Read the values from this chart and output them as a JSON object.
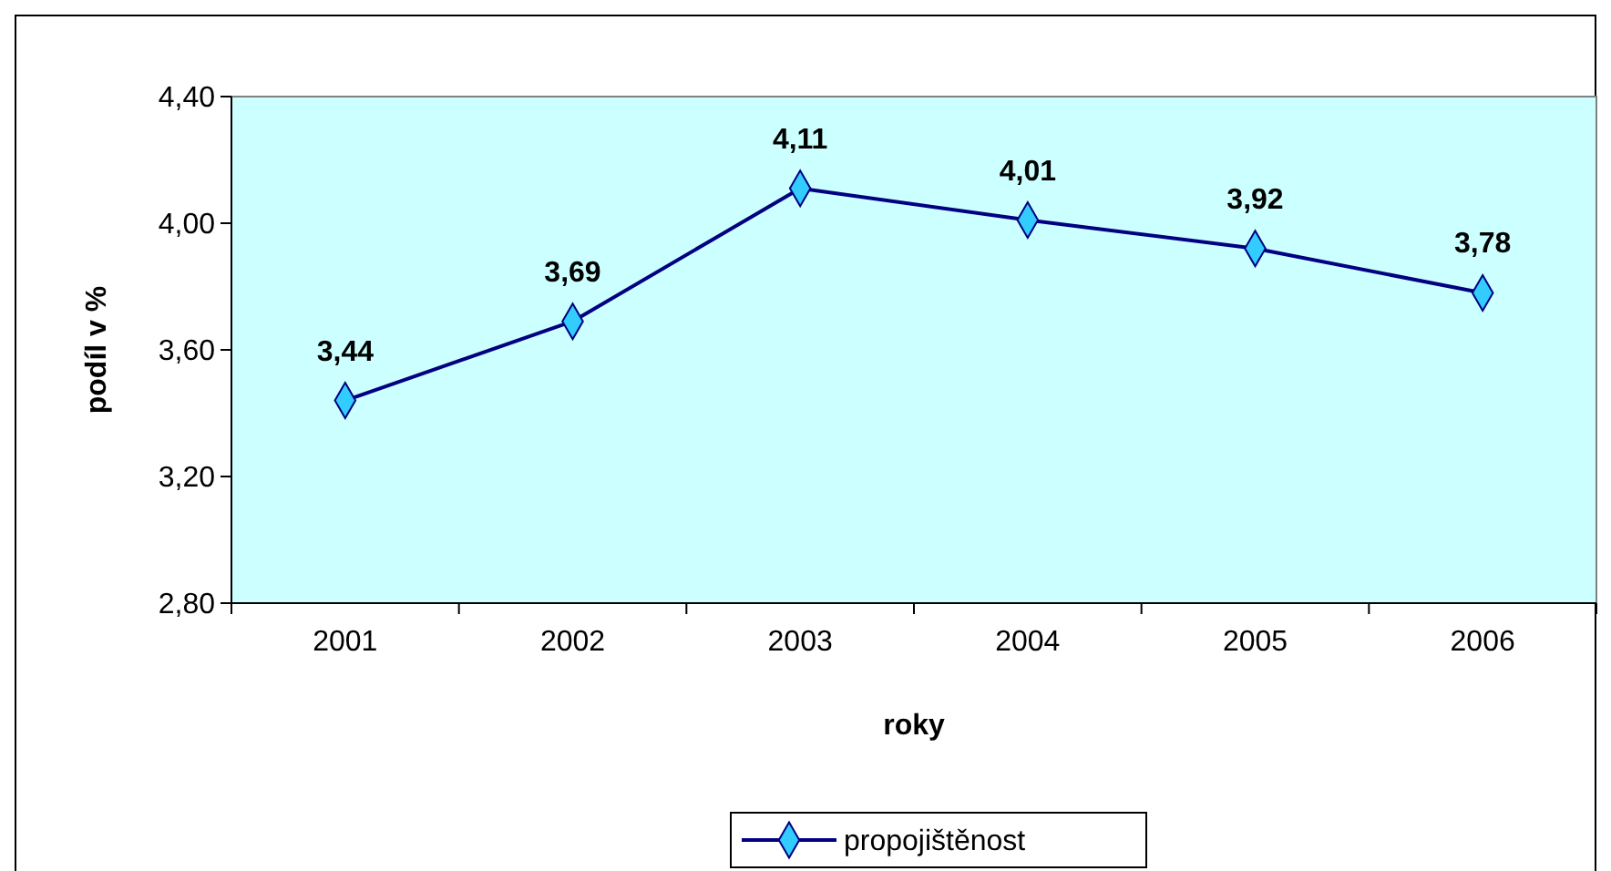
{
  "chart_data": {
    "type": "line",
    "xlabel": "roky",
    "ylabel": "podíl v %",
    "categories": [
      "2001",
      "2002",
      "2003",
      "2004",
      "2005",
      "2006"
    ],
    "series": [
      {
        "name": "propojištěnost",
        "color": "#000080",
        "values": [
          3.44,
          3.69,
          4.11,
          4.01,
          3.92,
          3.78
        ],
        "value_labels": [
          "3,44",
          "3,69",
          "4,11",
          "4,01",
          "3,92",
          "3,78"
        ]
      }
    ],
    "ylim": [
      2.8,
      4.4
    ],
    "yticks": [
      {
        "value": 2.8,
        "label": "2,80"
      },
      {
        "value": 3.2,
        "label": "3,20"
      },
      {
        "value": 3.6,
        "label": "3,60"
      },
      {
        "value": 4.0,
        "label": "4,00"
      },
      {
        "value": 4.4,
        "label": "4,40"
      }
    ],
    "grid": false,
    "legend": "bottom",
    "marker": "diamond",
    "line_style": "solid"
  }
}
